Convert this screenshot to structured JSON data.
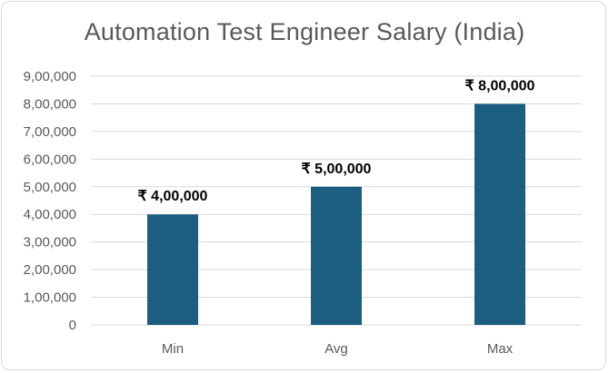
{
  "chart_data": {
    "type": "bar",
    "title": "Automation Test Engineer Salary (India)",
    "categories": [
      "Min",
      "Avg",
      "Max"
    ],
    "values": [
      400000,
      500000,
      800000
    ],
    "data_labels": [
      "₹ 4,00,000",
      "₹ 5,00,000",
      "₹ 8,00,000"
    ],
    "ylim": [
      0,
      900000
    ],
    "y_ticks": [
      0,
      100000,
      200000,
      300000,
      400000,
      500000,
      600000,
      700000,
      800000,
      900000
    ],
    "y_tick_labels": [
      "0",
      "1,00,000",
      "2,00,000",
      "3,00,000",
      "4,00,000",
      "5,00,000",
      "6,00,000",
      "7,00,000",
      "8,00,000",
      "9,00,000"
    ],
    "bar_color": "#1b5e7f",
    "grid": true,
    "legend": "none"
  }
}
